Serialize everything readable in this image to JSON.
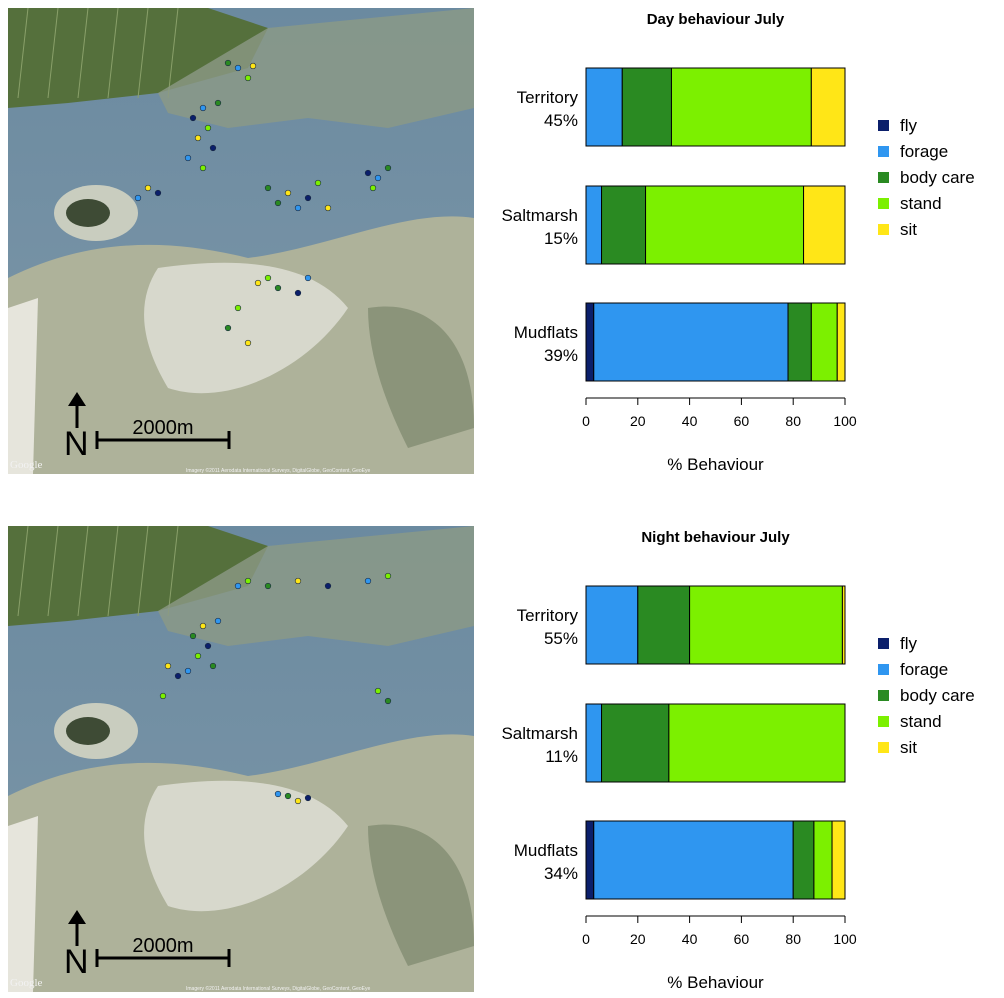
{
  "colors": {
    "fly": "#0b1f6b",
    "forage": "#2f96f0",
    "body care": "#2a8a22",
    "stand": "#7cf000",
    "sit": "#ffe617"
  },
  "maps": [
    {
      "north_label": "N",
      "scale_label": "2000m",
      "google_label": "Google",
      "credit": "Imagery ©2011 Aerodata International Surveys, DigitalGlobe, GeoContent, GeoEye"
    },
    {
      "north_label": "N",
      "scale_label": "2000m",
      "google_label": "Google",
      "credit": "Imagery ©2011 Aerodata International Surveys, DigitalGlobe, GeoContent, GeoEye"
    }
  ],
  "chart_data": [
    {
      "type": "bar",
      "orientation": "horizontal",
      "stacked": true,
      "title": "Day behaviour July",
      "xlabel": "% Behaviour",
      "xlim": [
        0,
        100
      ],
      "xticks": [
        "0",
        "20",
        "40",
        "60",
        "80",
        "100"
      ],
      "categories": [
        {
          "line1": "Territory",
          "line2": "45%"
        },
        {
          "line1": "Saltmarsh",
          "line2": "15%"
        },
        {
          "line1": "Mudflats",
          "line2": "39%"
        }
      ],
      "series": [
        {
          "name": "fly",
          "values": [
            0,
            0,
            3
          ]
        },
        {
          "name": "forage",
          "values": [
            14,
            6,
            75
          ]
        },
        {
          "name": "body care",
          "values": [
            19,
            17,
            9
          ]
        },
        {
          "name": "stand",
          "values": [
            54,
            61,
            10
          ]
        },
        {
          "name": "sit",
          "values": [
            13,
            16,
            3
          ]
        }
      ],
      "legend": "right"
    },
    {
      "type": "bar",
      "orientation": "horizontal",
      "stacked": true,
      "title": "Night behaviour July",
      "xlabel": "% Behaviour",
      "xlim": [
        0,
        100
      ],
      "xticks": [
        "0",
        "20",
        "40",
        "60",
        "80",
        "100"
      ],
      "categories": [
        {
          "line1": "Territory",
          "line2": "55%"
        },
        {
          "line1": "Saltmarsh",
          "line2": "11%"
        },
        {
          "line1": "Mudflats",
          "line2": "34%"
        }
      ],
      "series": [
        {
          "name": "fly",
          "values": [
            0,
            0,
            3
          ]
        },
        {
          "name": "forage",
          "values": [
            20,
            6,
            77
          ]
        },
        {
          "name": "body care",
          "values": [
            20,
            26,
            8
          ]
        },
        {
          "name": "stand",
          "values": [
            59,
            68,
            7
          ]
        },
        {
          "name": "sit",
          "values": [
            1,
            0,
            5
          ]
        }
      ],
      "legend": "right"
    }
  ]
}
